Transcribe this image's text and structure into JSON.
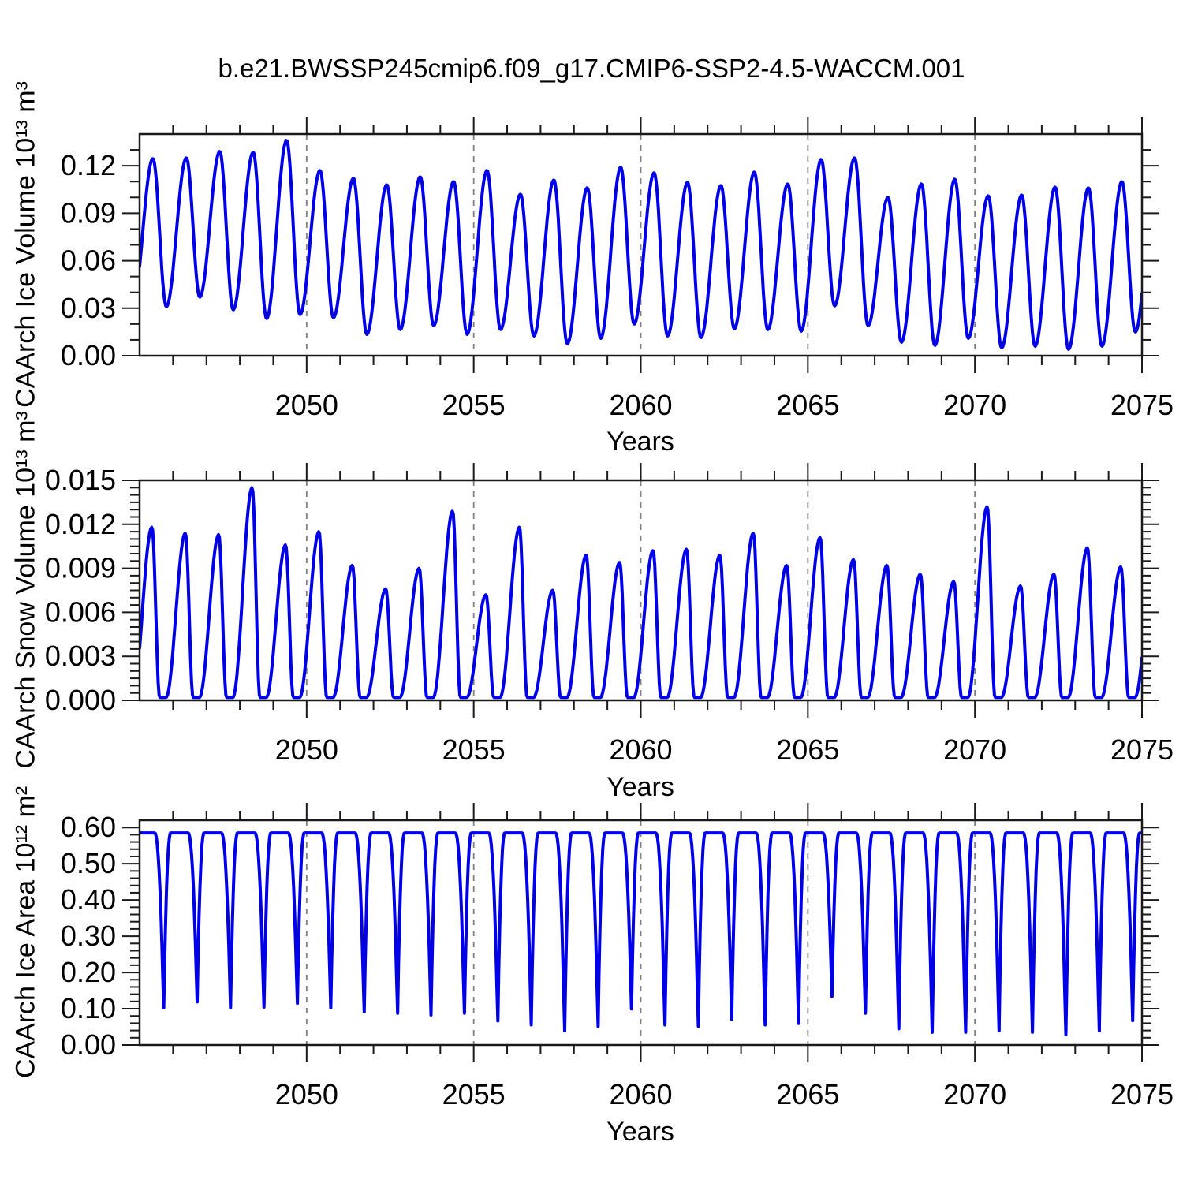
{
  "title": "b.e21.BWSSP245cmip6.f09_g17.CMIP6-SSP2-4.5-WACCM.001",
  "xlabel": "Years",
  "colors": {
    "line": "#0000e8",
    "frame": "#1a1a1a",
    "grid": "#808080",
    "background": "#ffffff",
    "text": "#000000"
  },
  "chart_data": [
    {
      "type": "line",
      "name": "caarch-ice-volume",
      "ylabel": "CAArch Ice Volume 10¹³ m³",
      "x_start": 2045,
      "x_end": 2075,
      "xticks": [
        2050,
        2055,
        2060,
        2065,
        2070,
        2075
      ],
      "xtick_labels": [
        "2050",
        "2055",
        "2060",
        "2065",
        "2070",
        "2075"
      ],
      "grid_years": [
        2050,
        2055,
        2060,
        2065,
        2070
      ],
      "ylim": [
        0,
        0.14
      ],
      "ytick_values": [
        0.0,
        0.03,
        0.06,
        0.09,
        0.12
      ],
      "ytick_labels": [
        "0.00",
        "0.03",
        "0.06",
        "0.09",
        "0.12"
      ],
      "y_minor_step": 0.01,
      "waveform": "smooth",
      "seasonal": {
        "peak_month": 0.4,
        "trough_month": 0.8,
        "pre_point": {
          "t": 2044.78,
          "v": 0.03
        },
        "post_point": {
          "t": 2075.4,
          "v": 0.112
        },
        "years_start": 2045,
        "peaks": [
          0.1245,
          0.125,
          0.129,
          0.1285,
          0.136,
          0.117,
          0.112,
          0.108,
          0.113,
          0.11,
          0.117,
          0.102,
          0.111,
          0.106,
          0.119,
          0.1155,
          0.1095,
          0.1075,
          0.116,
          0.1085,
          0.124,
          0.125,
          0.1,
          0.1085,
          0.1115,
          0.101,
          0.1015,
          0.1065,
          0.106,
          0.11
        ],
        "troughs": [
          0.031,
          0.037,
          0.029,
          0.0235,
          0.026,
          0.024,
          0.0135,
          0.0165,
          0.019,
          0.0135,
          0.0165,
          0.0125,
          0.0075,
          0.011,
          0.02,
          0.0125,
          0.0115,
          0.017,
          0.0165,
          0.0155,
          0.0315,
          0.019,
          0.0085,
          0.0065,
          0.011,
          0.005,
          0.006,
          0.004,
          0.006,
          0.015
        ]
      }
    },
    {
      "type": "line",
      "name": "caarch-snow-volume",
      "ylabel": "CAArch Snow Volume 10¹³ m³",
      "x_start": 2045,
      "x_end": 2075,
      "xticks": [
        2050,
        2055,
        2060,
        2065,
        2070,
        2075
      ],
      "xtick_labels": [
        "2050",
        "2055",
        "2060",
        "2065",
        "2070",
        "2075"
      ],
      "grid_years": [
        2050,
        2055,
        2060,
        2065,
        2070
      ],
      "ylim": [
        0,
        0.015
      ],
      "ytick_values": [
        0.0,
        0.003,
        0.006,
        0.009,
        0.012,
        0.015
      ],
      "ytick_labels": [
        "0.000",
        "0.003",
        "0.006",
        "0.009",
        "0.012",
        "0.015"
      ],
      "y_minor_step": 0.0005,
      "waveform": "sawtooth",
      "seasonal": {
        "peak_month": 0.37,
        "meltout_month": 0.6,
        "freeze_month": 0.79,
        "baseline": 0.0002,
        "pre_point": {
          "t": 2044.79,
          "v": 0.0002
        },
        "post_point": {
          "t": 2075.37,
          "v": 0.0095
        },
        "years_start": 2045,
        "peaks": [
          0.0118,
          0.0114,
          0.0113,
          0.0145,
          0.0106,
          0.0115,
          0.0092,
          0.0076,
          0.009,
          0.0129,
          0.0072,
          0.0118,
          0.0075,
          0.0099,
          0.0094,
          0.0102,
          0.0103,
          0.0099,
          0.0114,
          0.0092,
          0.0111,
          0.0096,
          0.0092,
          0.0086,
          0.0081,
          0.0132,
          0.0078,
          0.0086,
          0.0104,
          0.0091
        ]
      }
    },
    {
      "type": "line",
      "name": "caarch-ice-area",
      "ylabel": "CAArch Ice Area 10¹² m²",
      "x_start": 2045,
      "x_end": 2075,
      "xticks": [
        2050,
        2055,
        2060,
        2065,
        2070,
        2075
      ],
      "xtick_labels": [
        "2050",
        "2055",
        "2060",
        "2065",
        "2070",
        "2075"
      ],
      "grid_years": [
        2050,
        2055,
        2060,
        2065,
        2070
      ],
      "ylim": [
        0,
        0.62
      ],
      "ytick_values": [
        0.0,
        0.1,
        0.2,
        0.3,
        0.4,
        0.5,
        0.6
      ],
      "ytick_labels": [
        "0.00",
        "0.10",
        "0.20",
        "0.30",
        "0.40",
        "0.50",
        "0.60"
      ],
      "y_minor_step": 0.02,
      "waveform": "plateau",
      "seasonal": {
        "plateau_top": 0.585,
        "drop_start_month": 0.45,
        "min_month": 0.72,
        "recover_month": 0.93,
        "ease_power": 2.2,
        "years_start": 2045,
        "minima": [
          0.091,
          0.108,
          0.091,
          0.093,
          0.104,
          0.091,
          0.08,
          0.076,
          0.071,
          0.076,
          0.054,
          0.043,
          0.026,
          0.039,
          0.088,
          0.043,
          0.039,
          0.058,
          0.043,
          0.047,
          0.123,
          0.076,
          0.032,
          0.022,
          0.022,
          0.026,
          0.022,
          0.015,
          0.026,
          0.055
        ]
      }
    }
  ]
}
